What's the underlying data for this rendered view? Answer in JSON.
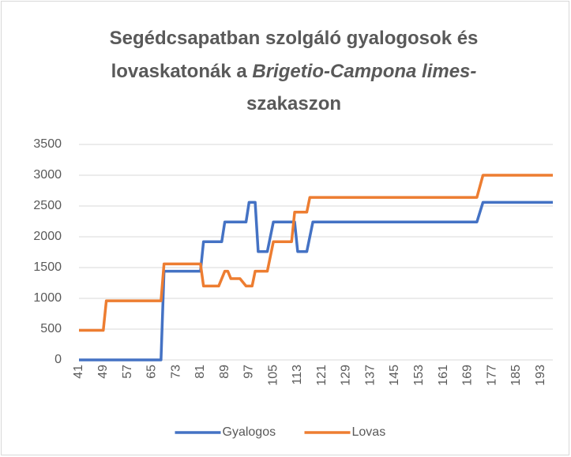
{
  "chart_data": {
    "type": "line",
    "title": [
      "Segédcsapatban szolgáló gyalogosok és",
      "lovaskatonák a ",
      "Brigetio-Campona limes-",
      "szakaszon"
    ],
    "xlim": [
      41,
      197
    ],
    "xticks": [
      41,
      49,
      57,
      65,
      73,
      81,
      89,
      97,
      105,
      113,
      121,
      129,
      137,
      145,
      153,
      161,
      169,
      177,
      185,
      193
    ],
    "ylim": [
      0,
      3500
    ],
    "yticks": [
      0,
      500,
      1000,
      1500,
      2000,
      2500,
      3000,
      3500
    ],
    "grid": true,
    "legend": "bottom",
    "series": [
      {
        "name": "Gyalogos",
        "color": "#4472c4",
        "x": [
          41,
          68,
          69,
          81,
          82,
          88,
          89,
          96,
          97,
          99,
          100,
          103,
          105,
          112,
          113,
          116,
          118,
          172,
          174,
          197
        ],
        "values": [
          0,
          0,
          1440,
          1440,
          1920,
          1920,
          2240,
          2240,
          2560,
          2560,
          1760,
          1760,
          2240,
          2240,
          1760,
          1760,
          2240,
          2240,
          2560,
          2560
        ]
      },
      {
        "name": "Lovas",
        "color": "#ed7d31",
        "x": [
          41,
          49,
          50,
          68,
          69,
          81,
          82,
          87,
          89,
          90,
          91,
          94,
          96,
          98,
          99,
          103,
          105,
          111,
          112,
          116,
          117,
          172,
          174,
          197
        ],
        "values": [
          480,
          480,
          960,
          960,
          1560,
          1560,
          1200,
          1200,
          1440,
          1440,
          1320,
          1320,
          1200,
          1200,
          1440,
          1440,
          1920,
          1920,
          2400,
          2400,
          2640,
          2640,
          3000,
          3000
        ]
      }
    ]
  }
}
